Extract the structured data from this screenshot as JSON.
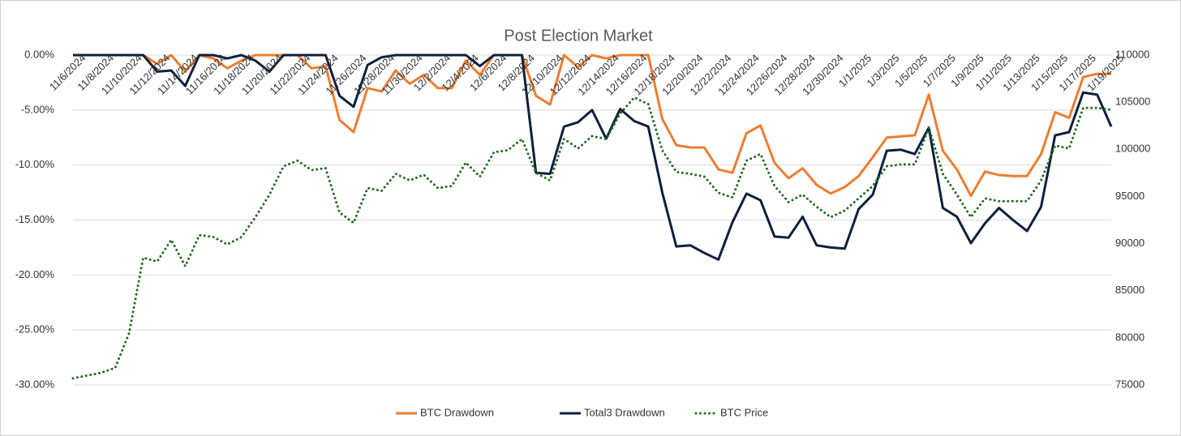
{
  "chart_data": {
    "type": "line",
    "title": "Post Election Market",
    "categories": [
      "11/6/2024",
      null,
      "11/8/2024",
      null,
      "11/10/2024",
      null,
      "11/12/2024",
      null,
      "11/14/2024",
      null,
      "11/16/2024",
      null,
      "11/18/2024",
      null,
      "11/20/2024",
      null,
      "11/22/2024",
      null,
      "11/24/2024",
      null,
      "11/26/2024",
      null,
      "11/28/2024",
      null,
      "11/30/2024",
      null,
      "12/2/2024",
      null,
      "12/4/2024",
      null,
      "12/6/2024",
      null,
      "12/8/2024",
      null,
      "12/10/2024",
      null,
      "12/12/2024",
      null,
      "12/14/2024",
      null,
      "12/16/2024",
      null,
      "12/18/2024",
      null,
      "12/20/2024",
      null,
      "12/22/2024",
      null,
      "12/24/2024",
      null,
      "12/26/2024",
      null,
      "12/28/2024",
      null,
      "12/30/2024",
      null,
      "1/1/2025",
      null,
      "1/3/2025",
      null,
      "1/5/2025",
      null,
      "1/7/2025",
      null,
      "1/9/2025",
      null,
      "1/11/2025",
      null,
      "1/13/2025",
      null,
      "1/15/2025",
      null,
      "1/17/2025",
      null,
      "1/19/2025"
    ],
    "series": [
      {
        "name": "BTC Drawdown",
        "color": "#ed7d31",
        "line_style": "solid",
        "values": [
          0,
          0,
          0,
          0,
          0,
          0,
          -0.8,
          0,
          -1.5,
          0,
          -0.3,
          -1.2,
          -0.5,
          0,
          0,
          0,
          0,
          -1.2,
          -1.0,
          -5.9,
          -7.0,
          -3.0,
          -3.3,
          -1.4,
          -2.6,
          -1.8,
          -3.0,
          -3.0,
          -0.5,
          -1.8,
          0,
          0,
          0,
          -3.7,
          -4.5,
          0,
          -1.1,
          0,
          -0.3,
          0,
          0,
          0,
          -5.8,
          -8.2,
          -8.4,
          -8.4,
          -10.4,
          -10.7,
          -7.1,
          -6.4,
          -9.8,
          -11.2,
          -10.3,
          -11.8,
          -12.6,
          -12.0,
          -11.0,
          -9.3,
          -7.5,
          -7.4,
          -7.3,
          -3.6,
          -8.7,
          -10.4,
          -12.8,
          -10.6,
          -10.9,
          -11.0,
          -11.0,
          -9.0,
          -5.2,
          -5.7,
          -2.0,
          -1.7,
          -1.7
        ]
      },
      {
        "name": "Total3 Drawdown",
        "color": "#0e1f3d",
        "line_style": "solid",
        "values": [
          0,
          0,
          0,
          0,
          0,
          0,
          -1.5,
          -1.4,
          -2.8,
          0,
          0,
          -0.3,
          0,
          -0.5,
          -1.5,
          0,
          0,
          0,
          0,
          -3.7,
          -4.7,
          -0.9,
          -0.2,
          0,
          0,
          0,
          0,
          0,
          0,
          -1.0,
          0,
          0,
          0,
          -10.7,
          -10.8,
          -6.5,
          -6.1,
          -5.0,
          -7.6,
          -4.9,
          -6.0,
          -6.5,
          -12.5,
          -17.4,
          -17.3,
          -18.0,
          -18.6,
          -15.2,
          -12.6,
          -13.2,
          -16.5,
          -16.6,
          -14.7,
          -17.3,
          -17.5,
          -17.6,
          -14.0,
          -12.7,
          -8.7,
          -8.6,
          -9.0,
          -6.6,
          -13.9,
          -14.7,
          -17.1,
          -15.3,
          -13.9,
          -15.0,
          -16.0,
          -13.8,
          -7.3,
          -7.0,
          -3.4,
          -3.6,
          -6.5
        ]
      },
      {
        "name": "BTC Price",
        "color": "#1e6b1e",
        "line_style": "dotted",
        "axis": "y2",
        "values": [
          75700,
          76000,
          76300,
          76800,
          80500,
          88500,
          88100,
          90400,
          87600,
          90900,
          90700,
          89900,
          90700,
          92800,
          95200,
          98200,
          98800,
          97800,
          98000,
          93300,
          92200,
          95900,
          95600,
          97400,
          96700,
          97300,
          95900,
          96100,
          98600,
          97100,
          99700,
          99900,
          101100,
          97500,
          96700,
          101100,
          100100,
          101400,
          101100,
          103800,
          105500,
          104800,
          99900,
          97600,
          97400,
          97100,
          95400,
          94900,
          98800,
          99500,
          96100,
          94400,
          95200,
          93900,
          92800,
          93500,
          94800,
          96100,
          98200,
          98400,
          98400,
          102300,
          97400,
          95200,
          92800,
          94800,
          94500,
          94500,
          94500,
          96700,
          100400,
          100100,
          104400,
          104400,
          104200
        ]
      }
    ],
    "ylim": [
      -30,
      0
    ],
    "yticks": [
      {
        "value": 0,
        "label": "0.00%"
      },
      {
        "value": -5,
        "label": "-5.00%"
      },
      {
        "value": -10,
        "label": "-10.00%"
      },
      {
        "value": -15,
        "label": "-15.00%"
      },
      {
        "value": -20,
        "label": "-20.00%"
      },
      {
        "value": -25,
        "label": "-25.00%"
      },
      {
        "value": -30,
        "label": "-30.00%"
      }
    ],
    "y2lim": [
      75000,
      110000
    ],
    "y2ticks": [
      75000,
      80000,
      85000,
      90000,
      95000,
      100000,
      105000,
      110000
    ],
    "grid": true,
    "legend": "bottom"
  }
}
